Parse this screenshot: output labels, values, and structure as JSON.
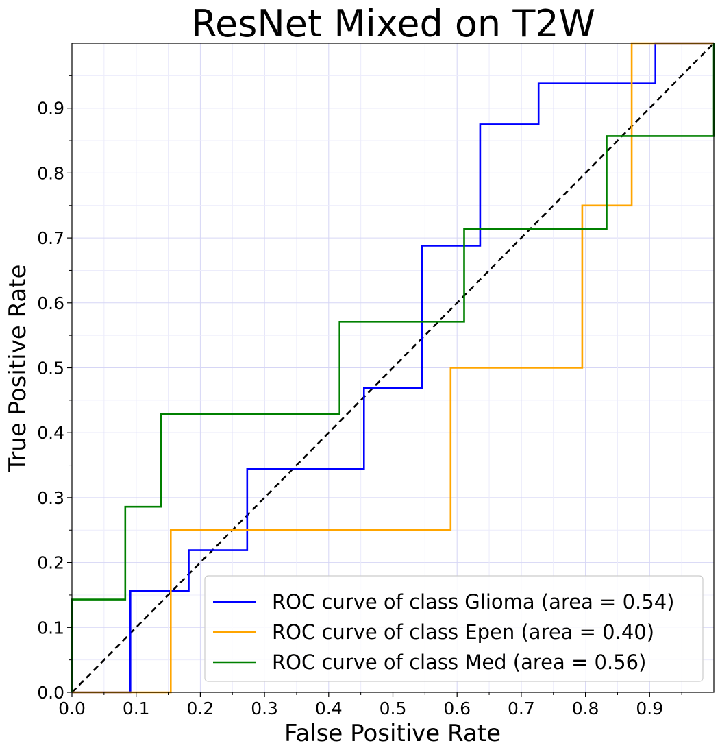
{
  "chart_data": {
    "type": "line",
    "title": "ResNet Mixed on T2W",
    "xlabel": "False Positive Rate",
    "ylabel": "True Positive Rate",
    "xlim": [
      0,
      1
    ],
    "ylim": [
      0,
      1
    ],
    "xticks": [
      "0.0",
      "0.1",
      "0.2",
      "0.3",
      "0.4",
      "0.5",
      "0.6",
      "0.7",
      "0.8",
      "0.9"
    ],
    "yticks": [
      "0.0",
      "0.1",
      "0.2",
      "0.3",
      "0.4",
      "0.5",
      "0.6",
      "0.7",
      "0.8",
      "0.9"
    ],
    "grid": true,
    "minor_grid": true,
    "legend_position": "lower-right",
    "series": [
      {
        "name": "ROC curve of class Glioma (area = 0.54)",
        "color": "#0000ff",
        "x": [
          0,
          0.091,
          0.091,
          0.182,
          0.182,
          0.273,
          0.273,
          0.455,
          0.455,
          0.545,
          0.545,
          0.636,
          0.636,
          0.727,
          0.727,
          0.909,
          0.909,
          1.0
        ],
        "y": [
          0,
          0,
          0.156,
          0.156,
          0.219,
          0.219,
          0.344,
          0.344,
          0.469,
          0.469,
          0.688,
          0.688,
          0.875,
          0.875,
          0.938,
          0.938,
          1.0,
          1.0
        ]
      },
      {
        "name": "ROC curve of class Epen (area = 0.40)",
        "color": "#ffa500",
        "x": [
          0,
          0.154,
          0.154,
          0.59,
          0.59,
          0.795,
          0.795,
          0.872,
          0.872,
          1.0
        ],
        "y": [
          0,
          0,
          0.25,
          0.25,
          0.5,
          0.5,
          0.75,
          0.75,
          1.0,
          1.0
        ]
      },
      {
        "name": "ROC curve of class Med (area = 0.56)",
        "color": "#008000",
        "x": [
          0,
          0,
          0.083,
          0.083,
          0.139,
          0.139,
          0.417,
          0.417,
          0.611,
          0.611,
          0.833,
          0.833,
          1.0,
          1.0
        ],
        "y": [
          0,
          0.143,
          0.143,
          0.286,
          0.286,
          0.429,
          0.429,
          0.571,
          0.571,
          0.714,
          0.714,
          0.857,
          0.857,
          1.0
        ]
      }
    ],
    "reference_line": {
      "x": [
        0,
        1
      ],
      "y": [
        0,
        1
      ],
      "color": "#000000",
      "style": "dashed"
    }
  }
}
